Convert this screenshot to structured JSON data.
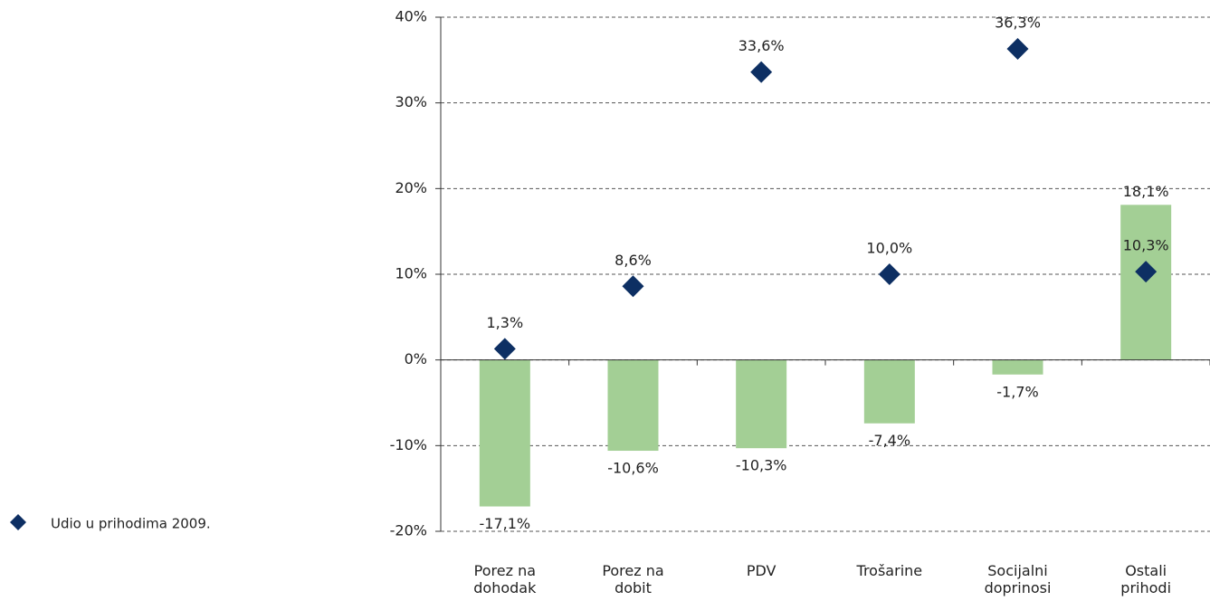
{
  "chart_data": {
    "type": "bar",
    "categories": [
      "Porez na dohodak",
      "Porez na dobit",
      "PDV",
      "Trošarine",
      "Socijalni doprinosi",
      "Ostali prihodi"
    ],
    "series": [
      {
        "color": "#a3cf95",
        "values": [
          -17.1,
          -10.6,
          -10.3,
          -7.4,
          -1.7,
          18.1
        ],
        "value_labels": [
          "-17,1%",
          "-10,6%",
          "-10,3%",
          "-7,4%",
          "-1,7%",
          "18,1%"
        ]
      },
      {
        "name": "Udio u prihodima 2009.",
        "type": "scatter",
        "marker": "diamond",
        "color": "#0d2f63",
        "values": [
          1.3,
          8.6,
          33.6,
          10.0,
          36.3,
          10.3
        ],
        "value_labels": [
          "1,3%",
          "8,6%",
          "33,6%",
          "10,0%",
          "36,3%",
          "10,3%"
        ]
      }
    ],
    "ylim": [
      -20,
      40
    ],
    "yticks": [
      {
        "value": -20,
        "label": "-20%"
      },
      {
        "value": -10,
        "label": "-10%"
      },
      {
        "value": 0,
        "label": "0%"
      },
      {
        "value": 10,
        "label": "10%"
      },
      {
        "value": 20,
        "label": "20%"
      },
      {
        "value": 30,
        "label": "30%"
      },
      {
        "value": 40,
        "label": "40%"
      }
    ],
    "grid": true,
    "legend": "left"
  }
}
